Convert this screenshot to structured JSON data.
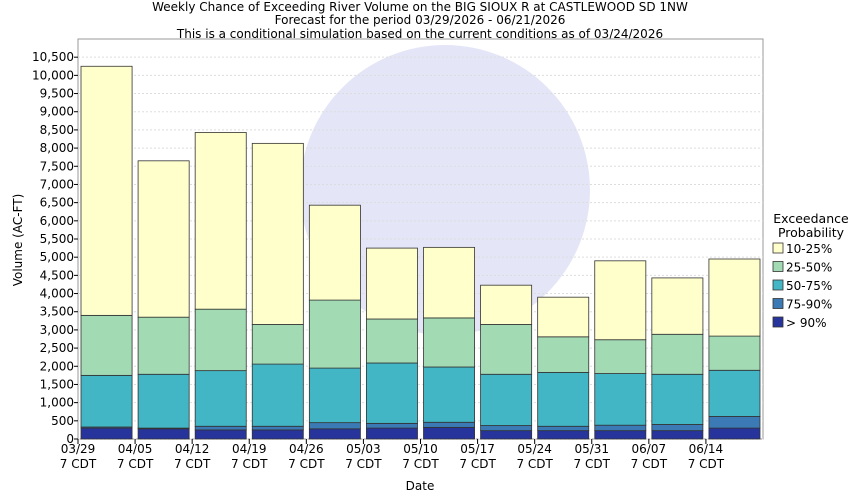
{
  "chart_data": {
    "type": "stacked_bar",
    "title": "Weekly Chance of Exceeding River Volume on the BIG SIOUX R at CASTLEWOOD SD 1NW",
    "subtitles": [
      "Forecast for the period 03/29/2026 - 06/21/2026",
      "This is a conditional simulation based on the current conditions as of 03/24/2026"
    ],
    "x_label": "Date",
    "y_label": "Volume (AC-FT)",
    "legend_title": "Exceedance Probability",
    "categories": [
      "03/29\n7 CDT",
      "04/05\n7 CDT",
      "04/12\n7 CDT",
      "04/19\n7 CDT",
      "04/26\n7 CDT",
      "05/03\n7 CDT",
      "05/10\n7 CDT",
      "05/17\n7 CDT",
      "05/24\n7 CDT",
      "05/31\n7 CDT",
      "06/07\n7 CDT",
      "06/14\n7 CDT"
    ],
    "series": [
      {
        "name": "> 90%",
        "color": "#27349b",
        "values": [
          300,
          280,
          250,
          250,
          280,
          300,
          320,
          230,
          230,
          230,
          230,
          300
        ]
      },
      {
        "name": "75-90%",
        "color": "#3b7ab5",
        "values": [
          30,
          20,
          100,
          100,
          170,
          130,
          140,
          140,
          120,
          150,
          170,
          320
        ]
      },
      {
        "name": "50-75%",
        "color": "#42b6c5",
        "values": [
          1420,
          1480,
          1530,
          1710,
          1500,
          1660,
          1520,
          1410,
          1480,
          1420,
          1380,
          1270
        ]
      },
      {
        "name": "25-50%",
        "color": "#a2dab4",
        "values": [
          1650,
          1570,
          1690,
          1090,
          1870,
          1210,
          1350,
          1370,
          980,
          930,
          1100,
          940
        ]
      },
      {
        "name": "10-25%",
        "color": "#ffffcc",
        "values": [
          6850,
          4300,
          4860,
          4980,
          2610,
          1950,
          1940,
          1080,
          1090,
          2170,
          1550,
          2120
        ]
      }
    ],
    "ylim": [
      0,
      11000
    ],
    "yticks": [
      0,
      500,
      {
        "value": 1000,
        "label": "1,000"
      },
      {
        "value": 1500,
        "label": "1,500"
      },
      {
        "value": 2000,
        "label": "2,000"
      },
      {
        "value": 2500,
        "label": "2,500"
      },
      {
        "value": 3000,
        "label": "3,000"
      },
      {
        "value": 3500,
        "label": "3,500"
      },
      {
        "value": 4000,
        "label": "4,000"
      },
      {
        "value": 4500,
        "label": "4,500"
      },
      {
        "value": 5000,
        "label": "5,000"
      },
      {
        "value": 5500,
        "label": "5,500"
      },
      {
        "value": 6000,
        "label": "6,000"
      },
      {
        "value": 6500,
        "label": "6,500"
      },
      {
        "value": 7000,
        "label": "7,000"
      },
      {
        "value": 7500,
        "label": "7,500"
      },
      {
        "value": 8000,
        "label": "8,000"
      },
      {
        "value": 8500,
        "label": "8,500"
      },
      {
        "value": 9000,
        "label": "9,000"
      },
      {
        "value": 9500,
        "label": "9,500"
      },
      {
        "value": 10000,
        "label": "10,000"
      },
      {
        "value": 10500,
        "label": "10,500"
      }
    ],
    "grid": true
  }
}
